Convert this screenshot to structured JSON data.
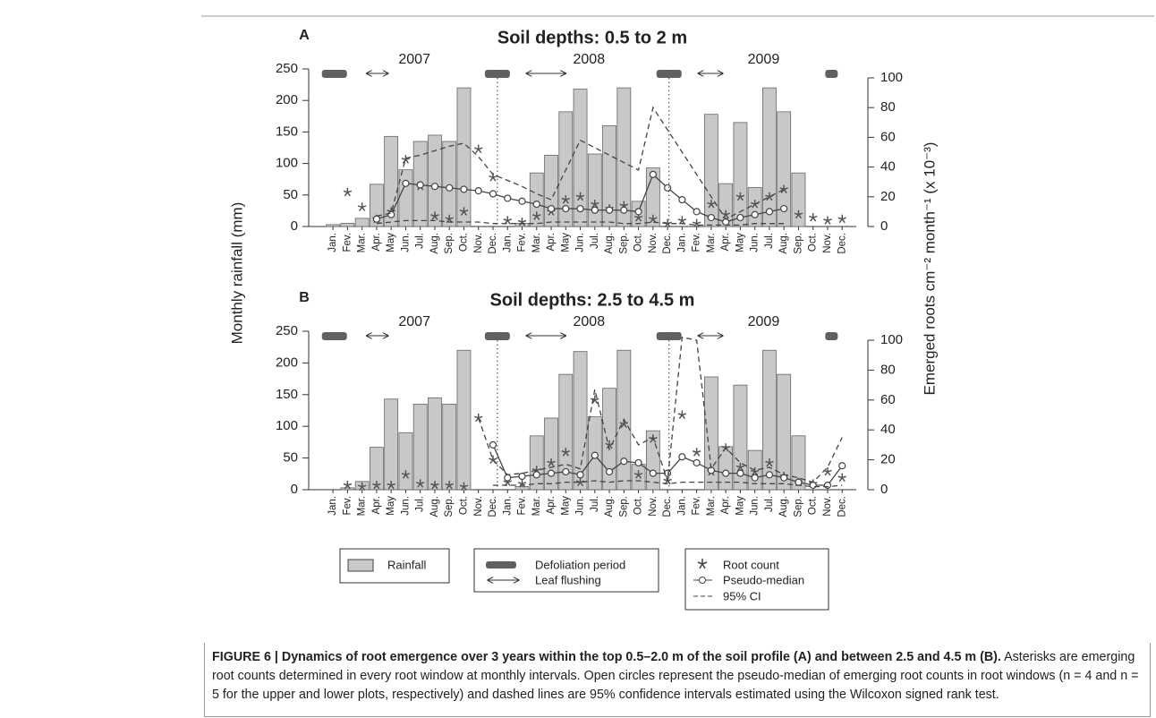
{
  "chart_data": [
    {
      "type": "bar",
      "panel": "A",
      "title": "Soil depths: 0.5 to 2 m",
      "categories": [
        "Jan.",
        "Fev.",
        "Mar.",
        "Apr.",
        "May",
        "Jun.",
        "Jul.",
        "Aug.",
        "Sep.",
        "Oct.",
        "Nov.",
        "Dec.",
        "Jan.",
        "Fev.",
        "Mar.",
        "Apr.",
        "May",
        "Jun.",
        "Jul.",
        "Aug.",
        "Sep.",
        "Oct.",
        "Nov.",
        "Dec.",
        "Jan.",
        "Fev.",
        "Mar.",
        "Apr.",
        "May",
        "Jun.",
        "Jul.",
        "Aug.",
        "Sep.",
        "Oct.",
        "Nov.",
        "Dec."
      ],
      "years": [
        "2007",
        "2008",
        "2009"
      ],
      "defoliation": [
        0.6,
        11.8,
        23.6,
        35.2
      ],
      "leaf_flushing": [
        [
          2.8,
          4.3
        ],
        [
          13.8,
          16.5
        ],
        [
          25.6,
          27.3
        ]
      ],
      "ylim": [
        0,
        250
      ],
      "yticks": [
        0,
        50,
        100,
        150,
        200,
        250
      ],
      "y2lim": [
        0,
        106
      ],
      "y2ticks": [
        0,
        20,
        40,
        60,
        80,
        100
      ],
      "series": [
        {
          "type": "bar",
          "color": "#c8c8c8",
          "values": [
            3,
            5,
            13,
            67,
            143,
            90,
            135,
            145,
            135,
            220,
            0,
            0,
            0,
            5,
            85,
            113,
            182,
            218,
            115,
            160,
            220,
            40,
            93,
            0,
            0,
            0,
            178,
            68,
            165,
            62,
            220,
            182,
            85,
            0,
            0,
            0
          ]
        },
        {
          "type": "scatter",
          "axis": "y2",
          "color": "#555555",
          "values": [
            null,
            23,
            13,
            5,
            10,
            45,
            27,
            7,
            5,
            10,
            52,
            33,
            4,
            3,
            7,
            10,
            18,
            20,
            15,
            12,
            14,
            6,
            5,
            2,
            4,
            2,
            15,
            8,
            20,
            15,
            20,
            25,
            8,
            6,
            4,
            5
          ]
        },
        {
          "type": "line",
          "axis": "y2",
          "color": "#444444",
          "markers": true,
          "values": [
            null,
            null,
            null,
            5,
            8,
            29,
            28,
            27,
            26,
            25,
            24,
            22,
            19,
            17,
            15,
            12,
            12,
            12,
            11,
            11,
            11,
            10,
            35,
            26,
            18,
            10,
            6,
            3,
            6,
            8,
            10,
            12,
            null,
            null,
            null,
            null
          ]
        },
        {
          "type": "line",
          "axis": "y2",
          "color": "#444444",
          "dash": true,
          "values": [
            null,
            null,
            null,
            7,
            9,
            46,
            48,
            51,
            54,
            56,
            47,
            35,
            31,
            27,
            22,
            18,
            38,
            58,
            53,
            48,
            43,
            38,
            80,
            65,
            50,
            35,
            20,
            5,
            10,
            15,
            20,
            25,
            null,
            null,
            null,
            null
          ]
        },
        {
          "type": "line",
          "axis": "y2",
          "color": "#444444",
          "dash": true,
          "values": [
            null,
            null,
            null,
            2,
            3,
            4,
            4,
            4,
            3,
            3,
            3,
            2,
            2,
            2,
            2,
            3,
            3,
            3,
            3,
            3,
            2,
            2,
            3,
            2,
            2,
            1,
            1,
            1,
            1,
            2,
            2,
            2,
            null,
            null,
            null,
            null
          ]
        }
      ]
    },
    {
      "type": "bar",
      "panel": "B",
      "title": "Soil depths: 2.5 to 4.5 m",
      "categories": [
        "Jan.",
        "Fev.",
        "Mar.",
        "Apr.",
        "May",
        "Jun.",
        "Jul.",
        "Aug.",
        "Sep.",
        "Oct.",
        "Nov.",
        "Dec.",
        "Jan.",
        "Fev.",
        "Mar.",
        "Apr.",
        "May",
        "Jun.",
        "Jul.",
        "Aug.",
        "Sep.",
        "Oct.",
        "Nov.",
        "Dec.",
        "Jan.",
        "Fev.",
        "Mar.",
        "Apr.",
        "May",
        "Jun.",
        "Jul.",
        "Aug.",
        "Sep.",
        "Oct.",
        "Nov.",
        "Dec."
      ],
      "years": [
        "2007",
        "2008",
        "2009"
      ],
      "defoliation": [
        0.6,
        11.8,
        23.6,
        35.2
      ],
      "leaf_flushing": [
        [
          2.8,
          4.3
        ],
        [
          13.8,
          16.5
        ],
        [
          25.6,
          27.3
        ]
      ],
      "ylim": [
        0,
        250
      ],
      "yticks": [
        0,
        50,
        100,
        150,
        200,
        250
      ],
      "y2lim": [
        0,
        106
      ],
      "y2ticks": [
        0,
        20,
        40,
        60,
        80,
        100
      ],
      "series": [
        {
          "type": "bar",
          "color": "#c8c8c8",
          "values": [
            0,
            3,
            13,
            67,
            143,
            90,
            135,
            145,
            135,
            220,
            0,
            0,
            0,
            5,
            85,
            113,
            182,
            218,
            115,
            160,
            220,
            40,
            93,
            0,
            0,
            0,
            178,
            68,
            165,
            62,
            220,
            182,
            85,
            0,
            0,
            0
          ]
        },
        {
          "type": "scatter",
          "axis": "y2",
          "color": "#555555",
          "values": [
            null,
            3,
            2,
            3,
            3,
            10,
            4,
            3,
            3,
            2,
            48,
            20,
            5,
            4,
            13,
            18,
            25,
            5,
            60,
            30,
            44,
            10,
            34,
            6,
            50,
            25,
            12,
            28,
            15,
            12,
            18,
            9,
            5,
            4,
            12,
            8
          ]
        },
        {
          "type": "line",
          "axis": "y2",
          "color": "#444444",
          "markers": true,
          "values": [
            null,
            null,
            null,
            null,
            null,
            null,
            null,
            null,
            null,
            null,
            null,
            30,
            8,
            9,
            10,
            11,
            12,
            10,
            23,
            12,
            19,
            18,
            11,
            11,
            22,
            18,
            13,
            11,
            11,
            8,
            10,
            8,
            5,
            3,
            3,
            16
          ]
        },
        {
          "type": "line",
          "axis": "y2",
          "color": "#444444",
          "dash": true,
          "values": [
            null,
            null,
            null,
            null,
            null,
            null,
            null,
            null,
            null,
            null,
            48,
            20,
            10,
            11,
            13,
            15,
            17,
            14,
            67,
            27,
            47,
            30,
            35,
            6,
            102,
            100,
            14,
            28,
            18,
            13,
            15,
            10,
            8,
            5,
            15,
            35
          ]
        },
        {
          "type": "line",
          "axis": "y2",
          "color": "#444444",
          "dash": true,
          "values": [
            null,
            null,
            null,
            null,
            null,
            null,
            null,
            null,
            null,
            null,
            null,
            3,
            3,
            3,
            4,
            4,
            5,
            5,
            6,
            5,
            6,
            6,
            5,
            4,
            5,
            5,
            5,
            5,
            5,
            4,
            4,
            4,
            3,
            2,
            2,
            3
          ]
        }
      ]
    }
  ],
  "y_label": "Monthly rainfall (mm)",
  "y2_label": "Emerged roots  cm⁻²  month⁻¹ (x 10⁻³)",
  "legend": {
    "rainfall": "Rainfall",
    "defoliation": "Defoliation period",
    "leaf_flushing": "Leaf flushing",
    "root_count": "Root count",
    "pseudo_median": "Pseudo-median",
    "ci": "95% CI"
  },
  "caption": {
    "label": "FIGURE 6 | Dynamics of root emergence over 3 years within the top 0.5–2.0 m of the soil profile (A) and between 2.5 and 4.5 m (B).",
    "text": "Asterisks are emerging root counts determined in every root window at monthly intervals. Open circles represent the pseudo-median of emerging root counts in root windows (n = 4 and n = 5 for the upper and lower plots, respectively) and dashed lines are 95% confidence intervals estimated using the Wilcoxon signed rank test."
  }
}
